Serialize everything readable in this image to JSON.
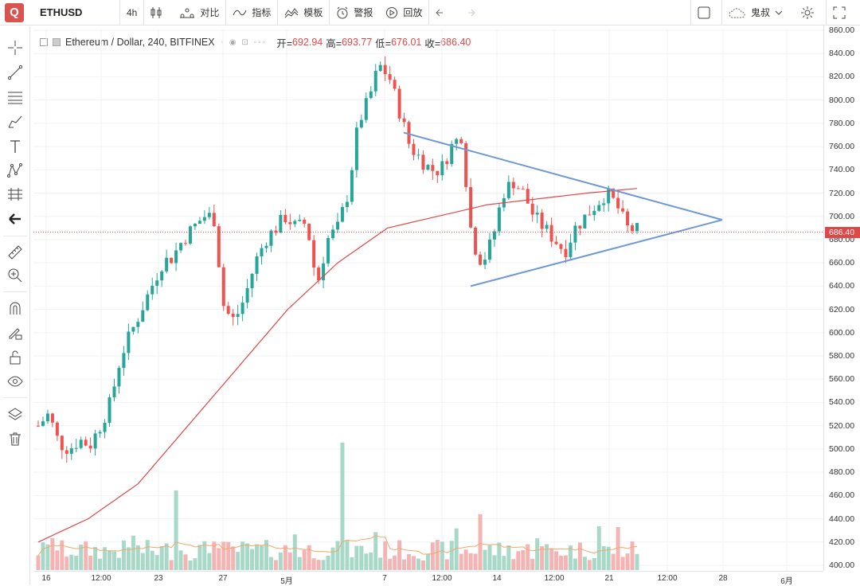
{
  "toolbar": {
    "logo": "Q",
    "symbol": "ETHUSD",
    "interval": "4h",
    "compare": "对比",
    "indicators": "指标",
    "templates": "模板",
    "alerts": "警报",
    "replay": "回放",
    "user": "鬼叔"
  },
  "legend": {
    "title": "Ethereum / Dollar, 240, BITFINEX",
    "open_label": "开=",
    "open": "692.94",
    "high_label": "高=",
    "high": "693.77",
    "low_label": "低=",
    "low": "676.01",
    "close_label": "收=",
    "close": "686.40"
  },
  "price_axis": {
    "ticks": [
      "860.00",
      "840.00",
      "820.00",
      "800.00",
      "780.00",
      "760.00",
      "740.00",
      "720.00",
      "700.00",
      "680.00",
      "660.00",
      "640.00",
      "620.00",
      "600.00",
      "580.00",
      "560.00",
      "540.00",
      "520.00",
      "500.00",
      "480.00",
      "460.00",
      "440.00",
      "420.00",
      "400.00"
    ],
    "current_price": "686.40"
  },
  "time_axis": {
    "ticks": [
      "16",
      "12:00",
      "23",
      "27",
      "5月",
      "7",
      "12:00",
      "14",
      "12:00",
      "21",
      "12:00",
      "28",
      "6月"
    ]
  },
  "colors": {
    "up": "#26a69a",
    "down": "#ef5350",
    "ma": "#e04848",
    "trendline": "#6e98d6",
    "vol_up": "#a8d8c8",
    "vol_down": "#f4b4b4"
  },
  "chart_data": {
    "type": "candlestick",
    "symbol": "ETHUSD",
    "ylim": [
      400,
      860
    ],
    "y_ticks": [
      860,
      840,
      820,
      800,
      780,
      760,
      740,
      720,
      700,
      680,
      660,
      640,
      620,
      600,
      580,
      560,
      540,
      520,
      500,
      480,
      460,
      440,
      420,
      400
    ],
    "x_ticks": [
      "16",
      "12:00",
      "23",
      "27",
      "5月",
      "7",
      "12:00",
      "14",
      "12:00",
      "21",
      "12:00",
      "28",
      "6月"
    ],
    "close_path": [
      520,
      530,
      505,
      500,
      508,
      503,
      520,
      540,
      580,
      600,
      620,
      640,
      660,
      665,
      680,
      690,
      700,
      700,
      620,
      610,
      630,
      660,
      680,
      690,
      700,
      690,
      695,
      640,
      680,
      690,
      720,
      780,
      800,
      830,
      820,
      790,
      760,
      750,
      740,
      740,
      760,
      770,
      680,
      660,
      680,
      720,
      730,
      720,
      700,
      690,
      680,
      670,
      690,
      700,
      710,
      720,
      710,
      690,
      688
    ],
    "ma_line": [
      420,
      440,
      470,
      520,
      570,
      620,
      660,
      690,
      700,
      710,
      715,
      720,
      724
    ],
    "triangle": {
      "upper": [
        [
          0,
          772
        ],
        [
          1,
          697
        ]
      ],
      "lower": [
        [
          0,
          640
        ],
        [
          1,
          697
        ]
      ]
    }
  }
}
